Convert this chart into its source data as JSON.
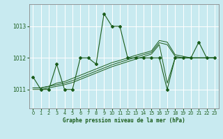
{
  "title": "Graphe pression niveau de la mer (hPa)",
  "bg_color": "#c8eaf0",
  "line_color": "#1a5c1a",
  "grid_color": "#ffffff",
  "xlim": [
    -0.5,
    23.5
  ],
  "ylim": [
    1010.4,
    1013.7
  ],
  "yticks": [
    1011,
    1012,
    1013
  ],
  "xticks": [
    0,
    1,
    2,
    3,
    4,
    5,
    6,
    7,
    8,
    9,
    10,
    11,
    12,
    13,
    14,
    15,
    16,
    17,
    18,
    19,
    20,
    21,
    22,
    23
  ],
  "main_series": [
    1011.4,
    1011.0,
    1011.0,
    1011.8,
    1011.0,
    1011.0,
    1012.0,
    1012.0,
    1011.8,
    1013.4,
    1013.0,
    1013.0,
    1012.0,
    1012.0,
    1012.0,
    1012.0,
    1012.0,
    1011.0,
    1012.0,
    1012.0,
    1012.0,
    1012.5,
    1012.0,
    1012.0
  ],
  "bundle_series": [
    [
      1011.05,
      1011.05,
      1011.1,
      1011.2,
      1011.25,
      1011.35,
      1011.45,
      1011.55,
      1011.65,
      1011.75,
      1011.85,
      1011.92,
      1012.0,
      1012.08,
      1012.15,
      1012.22,
      1012.55,
      1012.5,
      1012.1,
      1012.05,
      1012.0,
      1012.0,
      1012.0,
      1012.0
    ],
    [
      1011.05,
      1011.05,
      1011.1,
      1011.15,
      1011.2,
      1011.28,
      1011.38,
      1011.48,
      1011.58,
      1011.68,
      1011.78,
      1011.86,
      1011.94,
      1012.02,
      1012.1,
      1012.17,
      1012.48,
      1012.42,
      1012.05,
      1012.0,
      1012.0,
      1012.0,
      1012.0,
      1012.0
    ],
    [
      1011.0,
      1011.0,
      1011.05,
      1011.1,
      1011.15,
      1011.22,
      1011.32,
      1011.42,
      1011.52,
      1011.62,
      1011.72,
      1011.8,
      1011.88,
      1011.96,
      1012.04,
      1012.12,
      1012.42,
      1011.2,
      1012.0,
      1012.0,
      1012.0,
      1012.0,
      1012.0,
      1012.0
    ]
  ]
}
